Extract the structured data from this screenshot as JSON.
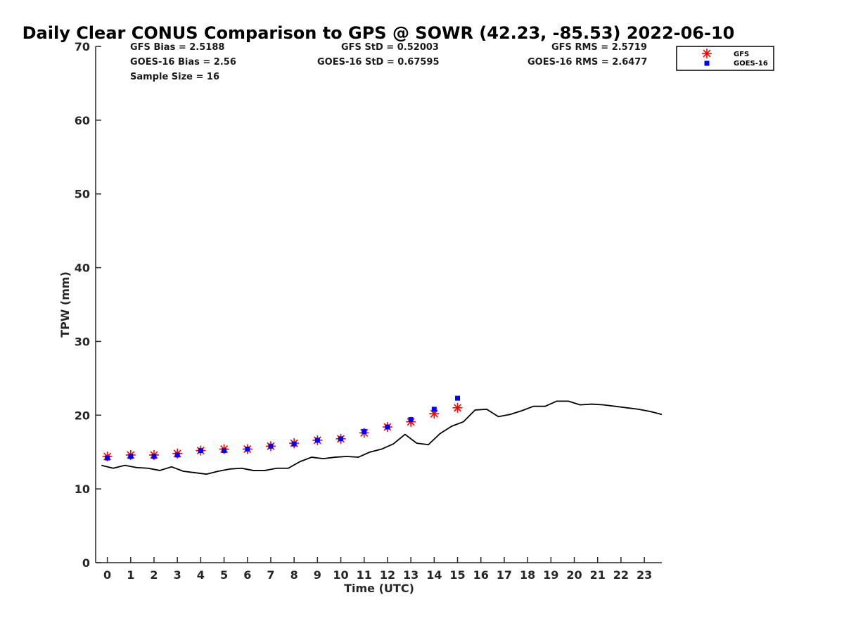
{
  "chart_data": {
    "type": "scatter",
    "title": "Daily Clear CONUS Comparison to GPS @ SOWR (42.23, -85.53) 2022-06-10",
    "xlabel": "Time (UTC)",
    "ylabel": "TPW (mm)",
    "xlim": [
      -0.5,
      23.75
    ],
    "ylim": [
      0,
      70
    ],
    "xticks": [
      0,
      1,
      2,
      3,
      4,
      5,
      6,
      7,
      8,
      9,
      10,
      11,
      12,
      13,
      14,
      15,
      16,
      17,
      18,
      19,
      20,
      21,
      22,
      23
    ],
    "yticks": [
      0,
      10,
      20,
      30,
      40,
      50,
      60,
      70
    ],
    "legend_position": "top-right, outside plot",
    "stats": {
      "gfs_bias": "GFS Bias = 2.5188",
      "goes_bias": "GOES-16 Bias = 2.56",
      "sample_size": "Sample Size = 16",
      "gfs_std": "GFS StD = 0.52003",
      "goes_std": "GOES-16 StD = 0.67595",
      "gfs_rms": "GFS RMS = 2.5719",
      "goes_rms": "GOES-16 RMS = 2.6477"
    },
    "series": [
      {
        "name": "GFS",
        "marker": "asterisk",
        "color": "#ff0000",
        "x": [
          0,
          1,
          2,
          3,
          4,
          5,
          6,
          7,
          8,
          9,
          10,
          11,
          12,
          13,
          14,
          15
        ],
        "y": [
          14.4,
          14.6,
          14.6,
          14.8,
          15.2,
          15.4,
          15.4,
          15.8,
          16.2,
          16.6,
          16.8,
          17.6,
          18.4,
          19.1,
          20.2,
          21.0
        ]
      },
      {
        "name": "GOES-16",
        "marker": "square",
        "color": "#0000ff",
        "x": [
          0,
          1,
          2,
          3,
          4,
          5,
          6,
          7,
          8,
          9,
          10,
          11,
          12,
          13,
          14,
          15
        ],
        "y": [
          14.2,
          14.4,
          14.4,
          14.6,
          15.2,
          15.2,
          15.4,
          15.8,
          16.1,
          16.6,
          16.8,
          17.8,
          18.4,
          19.4,
          20.8,
          22.3
        ]
      },
      {
        "name": "GPS",
        "marker": "line",
        "color": "#000000",
        "x": [
          -0.25,
          0.25,
          0.75,
          1.25,
          1.75,
          2.25,
          2.75,
          3.25,
          3.75,
          4.25,
          4.75,
          5.25,
          5.75,
          6.25,
          6.75,
          7.25,
          7.75,
          8.25,
          8.75,
          9.25,
          9.75,
          10.25,
          10.75,
          11.25,
          11.75,
          12.25,
          12.75,
          13.25,
          13.75,
          14.25,
          14.75,
          15.25,
          15.75,
          16.25,
          16.75,
          17.25,
          17.75,
          18.25,
          18.75,
          19.25,
          19.75,
          20.25,
          20.75,
          21.25,
          21.75,
          22.25,
          22.75,
          23.25,
          23.75
        ],
        "y": [
          13.2,
          12.8,
          13.2,
          12.9,
          12.8,
          12.5,
          13.0,
          12.4,
          12.2,
          12.0,
          12.4,
          12.7,
          12.8,
          12.5,
          12.5,
          12.8,
          12.8,
          13.7,
          14.3,
          14.1,
          14.3,
          14.4,
          14.3,
          15.0,
          15.4,
          16.1,
          17.4,
          16.2,
          16.0,
          17.5,
          18.5,
          19.1,
          20.7,
          20.8,
          19.8,
          20.1,
          20.6,
          21.2,
          21.2,
          21.9,
          21.9,
          21.4,
          21.5,
          21.4,
          21.2,
          21.0,
          20.8,
          20.5,
          20.1
        ]
      }
    ]
  }
}
